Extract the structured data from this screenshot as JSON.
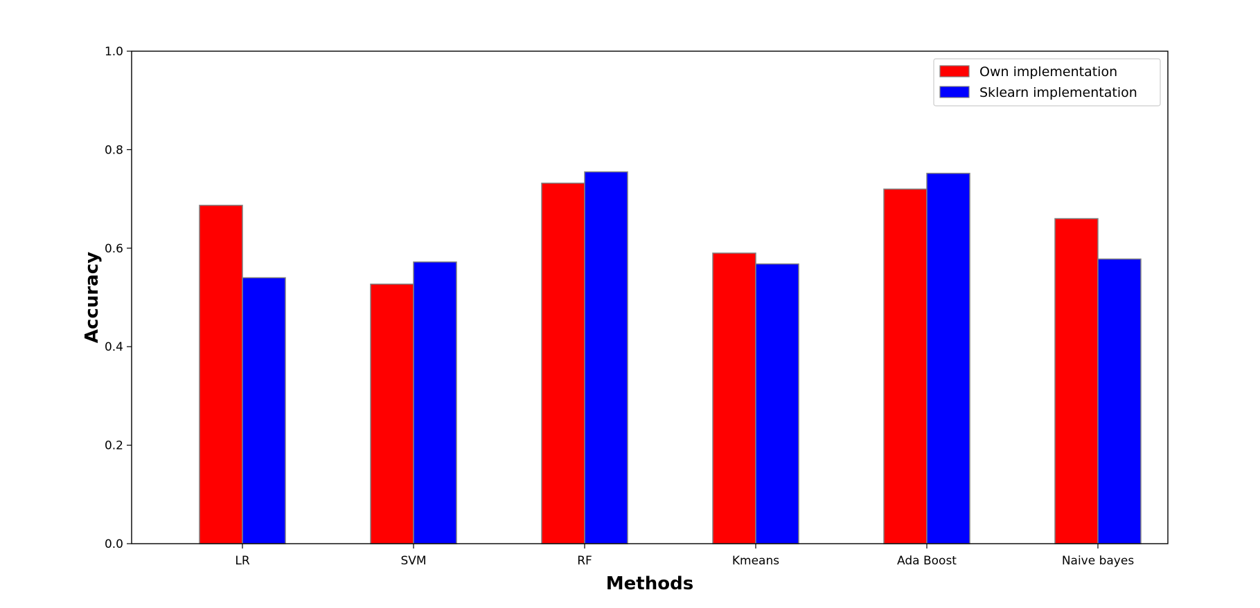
{
  "chart_data": {
    "type": "bar",
    "title": "",
    "xlabel": "Methods",
    "ylabel": "Accuracy",
    "categories": [
      "LR",
      "SVM",
      "RF",
      "Kmeans",
      "Ada Boost",
      "Naive bayes"
    ],
    "series": [
      {
        "name": "Own implementation",
        "color": "#ff0000",
        "values": [
          0.687,
          0.527,
          0.732,
          0.59,
          0.72,
          0.66
        ]
      },
      {
        "name": "Sklearn implementation",
        "color": "#0000ff",
        "values": [
          0.54,
          0.572,
          0.755,
          0.568,
          0.752,
          0.578
        ]
      }
    ],
    "ylim": [
      0.0,
      1.0
    ],
    "yticks": [
      "0.0",
      "0.2",
      "0.4",
      "0.6",
      "0.8",
      "1.0"
    ],
    "grid": false,
    "legend_position": "top-right",
    "bar_edge_color": "#808080"
  }
}
